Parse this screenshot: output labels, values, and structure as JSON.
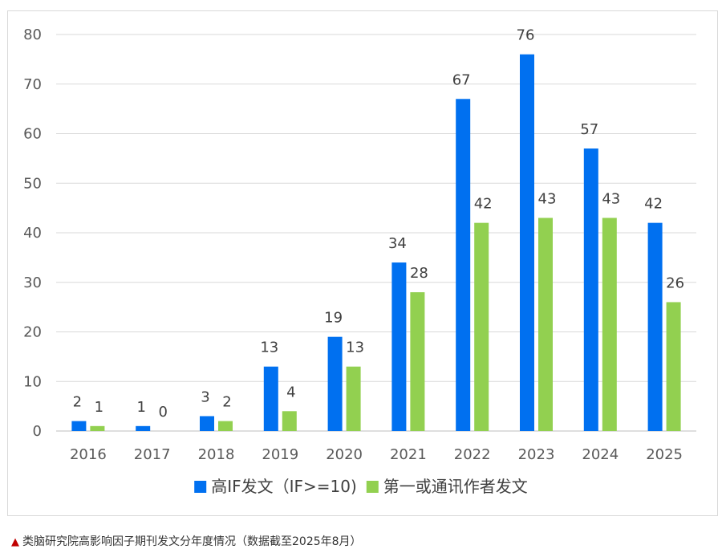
{
  "chart_data": {
    "type": "bar",
    "title": "",
    "xlabel": "",
    "ylabel": "",
    "ylim": [
      0,
      80
    ],
    "yticks": [
      0,
      10,
      20,
      30,
      40,
      50,
      60,
      70,
      80
    ],
    "categories": [
      "2016",
      "2017",
      "2018",
      "2019",
      "2020",
      "2021",
      "2022",
      "2023",
      "2024",
      "2025"
    ],
    "series": [
      {
        "name": "高IF发文（IF>=10)",
        "color": "#0070f0",
        "values": [
          2,
          1,
          3,
          13,
          19,
          34,
          67,
          76,
          57,
          42
        ]
      },
      {
        "name": "第一或通讯作者发文",
        "color": "#92d050",
        "values": [
          1,
          0,
          2,
          4,
          13,
          28,
          42,
          43,
          43,
          26
        ]
      }
    ],
    "legend_position": "bottom",
    "grid": true
  },
  "caption": {
    "marker": "▲",
    "text": "类脑研究院高影响因子期刊发文分年度情况（数据截至2025年8月）"
  }
}
